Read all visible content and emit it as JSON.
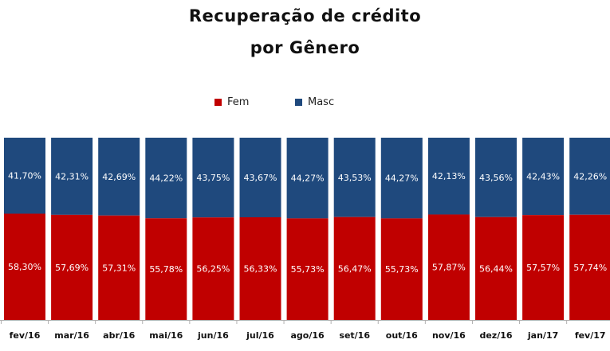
{
  "chart_data": {
    "type": "bar",
    "stacked": "100%",
    "title_line1": "Recuperação de crédito",
    "title_line2": "por Gênero",
    "categories": [
      "fev/16",
      "mar/16",
      "abr/16",
      "mai/16",
      "jun/16",
      "jul/16",
      "ago/16",
      "set/16",
      "out/16",
      "nov/16",
      "dez/16",
      "jan/17",
      "fev/17"
    ],
    "series": [
      {
        "name": "Fem",
        "color": "#c00000",
        "values": [
          58.3,
          57.69,
          57.31,
          55.78,
          56.25,
          56.33,
          55.73,
          56.47,
          55.73,
          57.87,
          56.44,
          57.57,
          57.74
        ],
        "labels": [
          "58,30%",
          "57,69%",
          "57,31%",
          "55,78%",
          "56,25%",
          "56,33%",
          "55,73%",
          "56,47%",
          "55,73%",
          "57,87%",
          "56,44%",
          "57,57%",
          "57,74%"
        ]
      },
      {
        "name": "Masc",
        "color": "#1f497d",
        "values": [
          41.7,
          42.31,
          42.69,
          44.22,
          43.75,
          43.67,
          44.27,
          43.53,
          44.27,
          42.13,
          43.56,
          42.43,
          42.26
        ],
        "labels": [
          "41,70%",
          "42,31%",
          "42,69%",
          "44,22%",
          "43,75%",
          "43,67%",
          "44,27%",
          "43,53%",
          "44,27%",
          "42,13%",
          "43,56%",
          "42,43%",
          "42,26%"
        ]
      }
    ],
    "ylim": [
      0,
      100
    ],
    "legend_position": "top-center",
    "grid": false
  }
}
